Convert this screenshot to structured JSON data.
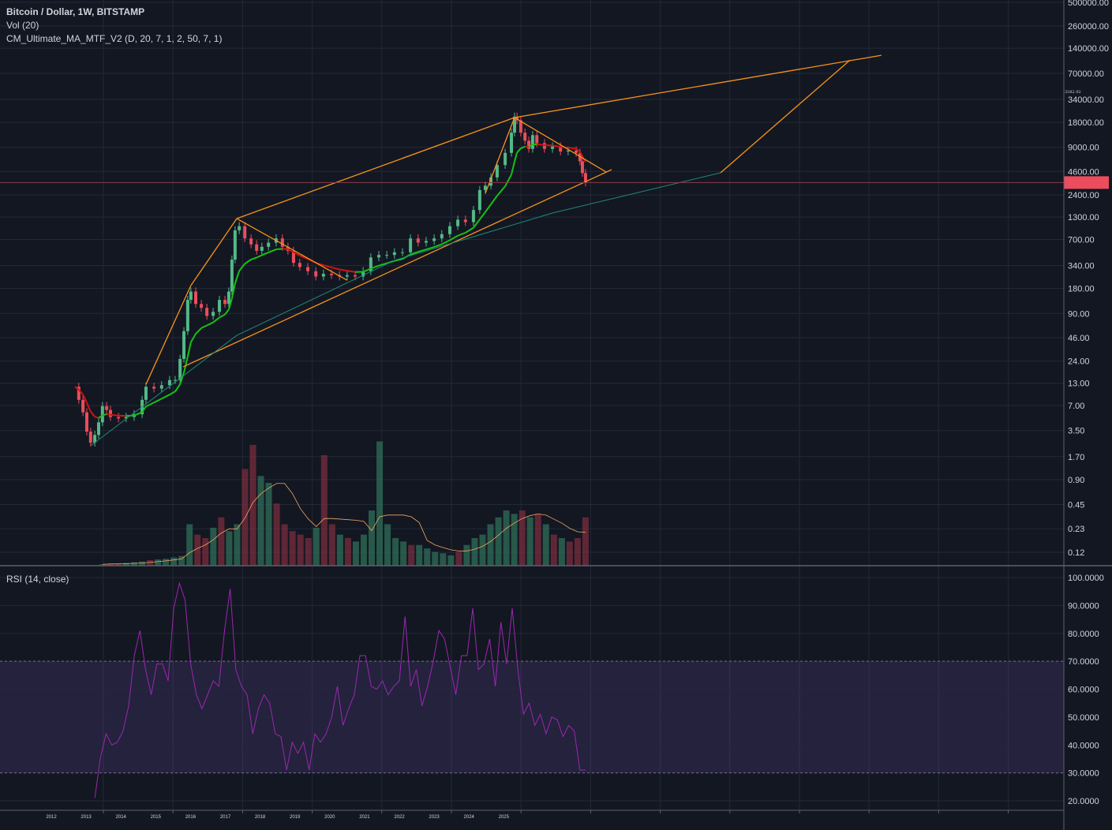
{
  "legend": {
    "symbol": "Bitcoin / Dollar, 1W, BITSTAMP",
    "volume": "Vol (20)",
    "ma": "CM_Ultimate_MA_MTF_V2 (D, 20, 7, 1, 2, 50, 7, 1)",
    "rsi": "RSI (14, close)"
  },
  "colors": {
    "background": "#131722",
    "up": "#53b987",
    "down": "#eb4d5c",
    "ma_up": "#14c314",
    "ma_down": "#d01414",
    "drawing": "#f7931a",
    "curve": "#1e8a7a",
    "rsi": "#9c27b0",
    "rsi_band": "#7e57c2",
    "vol_ma": "#f4a460"
  },
  "chart_data": [
    {
      "type": "candlestick",
      "title": "Bitcoin / Dollar, 1W, BITSTAMP",
      "y_scale": "log",
      "grid": true,
      "last_price": "3382.92",
      "x_tick_labels": [
        "2012",
        "2013",
        "2014",
        "2015",
        "2016",
        "2017",
        "2018",
        "2019",
        "2020",
        "2021",
        "2022",
        "2023",
        "2024",
        "2025"
      ],
      "y_tick_labels": [
        "500000.00",
        "260000.00",
        "140000.00",
        "70000.00",
        "34000.00",
        "18000.00",
        "9000.00",
        "4600.00",
        "2400.00",
        "1300.00",
        "700.00",
        "340.00",
        "180.00",
        "90.00",
        "46.00",
        "24.00",
        "13.00",
        "7.00",
        "3.50",
        "1.70",
        "0.90",
        "0.45",
        "0.23",
        "0.12"
      ],
      "close": [
        [
          2012.68,
          11.8
        ],
        [
          2012.79,
          8.2
        ],
        [
          2012.91,
          5.8
        ],
        [
          2013.02,
          3.4
        ],
        [
          2013.13,
          2.5
        ],
        [
          2013.25,
          3.1
        ],
        [
          2013.36,
          4.4
        ],
        [
          2013.47,
          6.9
        ],
        [
          2013.59,
          6.2
        ],
        [
          2013.7,
          5.1
        ],
        [
          2013.93,
          4.9
        ],
        [
          2014.15,
          5.1
        ],
        [
          2014.38,
          5.5
        ],
        [
          2014.61,
          8.2
        ],
        [
          2014.72,
          11.8
        ],
        [
          2014.95,
          11.2
        ],
        [
          2015.17,
          12.3
        ],
        [
          2015.4,
          14.2
        ],
        [
          2015.56,
          14.2
        ],
        [
          2015.7,
          25.5
        ],
        [
          2015.81,
          55
        ],
        [
          2015.92,
          131
        ],
        [
          2016.01,
          165
        ],
        [
          2016.15,
          117
        ],
        [
          2016.31,
          105
        ],
        [
          2016.47,
          84
        ],
        [
          2016.65,
          94
        ],
        [
          2016.83,
          131
        ],
        [
          2016.99,
          117
        ],
        [
          2017.1,
          165
        ],
        [
          2017.19,
          400
        ],
        [
          2017.28,
          900
        ],
        [
          2017.4,
          1010
        ],
        [
          2017.56,
          720
        ],
        [
          2017.74,
          610
        ],
        [
          2017.9,
          510
        ],
        [
          2018.05,
          570
        ],
        [
          2018.24,
          640
        ],
        [
          2018.46,
          720
        ],
        [
          2018.64,
          570
        ],
        [
          2018.8,
          510
        ],
        [
          2018.96,
          365
        ],
        [
          2019.14,
          325
        ],
        [
          2019.37,
          290
        ],
        [
          2019.6,
          250
        ],
        [
          2019.82,
          270
        ],
        [
          2020.05,
          260
        ],
        [
          2020.28,
          250
        ],
        [
          2020.5,
          260
        ],
        [
          2020.73,
          250
        ],
        [
          2020.96,
          290
        ],
        [
          2021.18,
          425
        ],
        [
          2021.41,
          455
        ],
        [
          2021.64,
          455
        ],
        [
          2021.86,
          490
        ],
        [
          2022.09,
          490
        ],
        [
          2022.32,
          720
        ],
        [
          2022.54,
          640
        ],
        [
          2022.77,
          670
        ],
        [
          2023.0,
          720
        ],
        [
          2023.22,
          810
        ],
        [
          2023.45,
          1010
        ],
        [
          2023.68,
          1210
        ],
        [
          2023.9,
          1130
        ],
        [
          2024.13,
          1580
        ],
        [
          2024.31,
          2750
        ],
        [
          2024.47,
          3100
        ],
        [
          2024.63,
          3900
        ],
        [
          2024.81,
          5500
        ],
        [
          2025.04,
          7700
        ],
        [
          2025.22,
          13500
        ],
        [
          2025.31,
          21000
        ],
        [
          2025.38,
          19000
        ],
        [
          2025.49,
          13500
        ],
        [
          2025.61,
          10800
        ],
        [
          2025.72,
          8600
        ],
        [
          2025.83,
          12600
        ],
        [
          2025.95,
          10100
        ],
        [
          2026.17,
          8600
        ],
        [
          2026.4,
          9200
        ],
        [
          2026.63,
          8000
        ],
        [
          2026.85,
          8200
        ],
        [
          2027.08,
          7700
        ],
        [
          2027.19,
          6100
        ],
        [
          2027.26,
          4400
        ],
        [
          2027.35,
          3382.92
        ]
      ],
      "drawings": [
        {
          "kind": "trend",
          "color": "#f7931a",
          "points": [
            [
              2017.33,
              1248
            ],
            [
              2025.31,
              20500
            ]
          ]
        },
        {
          "kind": "trend",
          "color": "#f7931a",
          "points": [
            [
              2025.31,
              20500
            ],
            [
              2035.85,
              115000
            ]
          ]
        },
        {
          "kind": "trend",
          "color": "#f7931a",
          "points": [
            [
              2015.79,
              20.5
            ],
            [
              2028.1,
              4840
            ]
          ]
        },
        {
          "kind": "trend",
          "color": "#f7931a",
          "points": [
            [
              2025.31,
              20500
            ],
            [
              2027.94,
              4540
            ]
          ]
        },
        {
          "kind": "trend",
          "color": "#f7931a",
          "points": [
            [
              2017.33,
              1248
            ],
            [
              2020.5,
              226
            ]
          ]
        },
        {
          "kind": "trend",
          "color": "#f7931a",
          "points": [
            [
              2014.72,
              12.6
            ],
            [
              2016.01,
              195
            ],
            [
              2017.33,
              1248
            ]
          ]
        },
        {
          "kind": "trend",
          "color": "#f7931a",
          "points": [
            [
              2024.47,
              2510
            ],
            [
              2025.31,
              20500
            ]
          ]
        },
        {
          "kind": "trend",
          "color": "#f7931a",
          "points": [
            [
              2031.23,
              4440
            ],
            [
              2034.95,
              101000
            ]
          ]
        },
        {
          "kind": "curve",
          "color": "#1e8a7a",
          "points": [
            [
              2013.13,
              2.3
            ],
            [
              2017.33,
              49
            ],
            [
              2021.86,
              392
            ],
            [
              2026.4,
              1455
            ],
            [
              2031.23,
              4440
            ]
          ]
        }
      ]
    },
    {
      "type": "bar",
      "title": "Vol (20)",
      "x_range": [
        2013.47,
        2027.35
      ],
      "values": [
        2,
        3,
        3,
        4,
        5,
        6,
        8,
        9,
        10,
        12,
        14,
        60,
        45,
        40,
        55,
        70,
        50,
        60,
        140,
        175,
        130,
        120,
        90,
        60,
        50,
        45,
        40,
        55,
        160,
        60,
        45,
        40,
        35,
        45,
        80,
        180,
        60,
        40,
        35,
        30,
        30,
        25,
        20,
        18,
        15,
        20,
        30,
        40,
        45,
        60,
        70,
        80,
        75,
        80,
        70,
        75,
        60,
        45,
        40,
        35,
        40,
        70
      ]
    },
    {
      "type": "line",
      "title": "RSI (14, close)",
      "x_range": [
        2013.25,
        2027.35
      ],
      "ylim": [
        20,
        100
      ],
      "y_tick_labels": [
        "100.0000",
        "90.0000",
        "80.0000",
        "70.0000",
        "60.0000",
        "50.0000",
        "40.0000",
        "30.0000",
        "20.0000"
      ],
      "bands": [
        30,
        70
      ],
      "values": [
        21,
        35.5,
        44,
        40,
        41,
        45,
        54,
        72,
        81,
        67,
        58,
        69,
        69,
        63,
        89,
        98,
        92,
        69,
        58,
        53,
        58,
        63,
        61,
        81,
        96,
        67,
        61,
        58,
        44,
        53,
        58,
        55,
        44,
        43,
        31,
        41,
        37,
        41,
        31,
        44,
        41,
        44,
        50,
        61,
        47,
        53,
        58,
        72,
        72,
        61,
        60,
        63,
        58,
        61,
        63,
        86,
        61,
        67,
        54,
        61,
        70,
        81,
        78,
        68,
        58,
        72,
        72,
        89,
        67,
        69,
        78,
        61,
        84,
        69,
        89,
        67,
        51,
        55,
        47,
        51,
        44,
        50,
        49,
        43,
        47,
        45,
        31,
        31
      ]
    }
  ]
}
